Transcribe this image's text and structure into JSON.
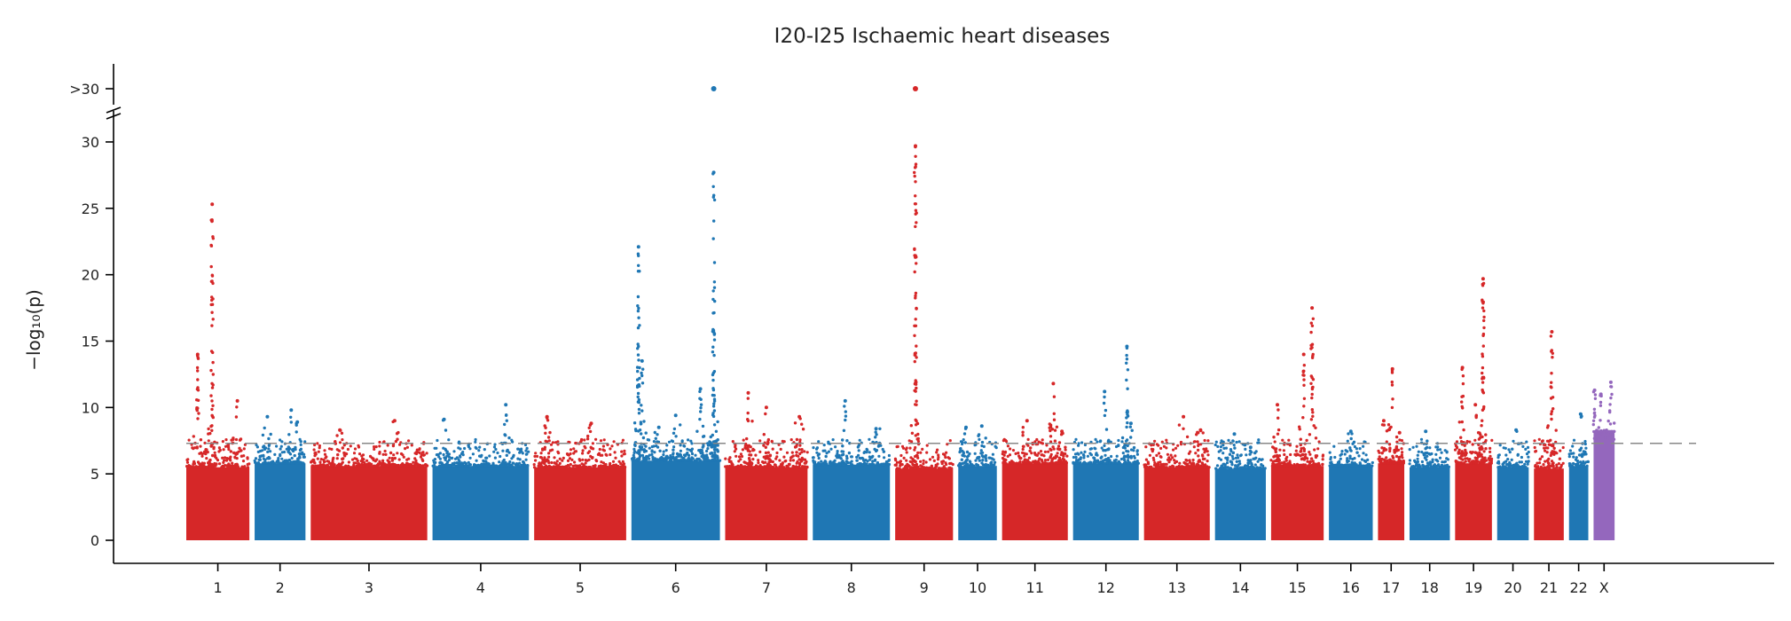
{
  "chart_data": {
    "type": "scatter",
    "subtype": "manhattan",
    "title": "I20-I25 Ischaemic heart diseases",
    "ylabel": "−log₁₀(p)",
    "ylim": [
      0,
      32
    ],
    "yticks": [
      0,
      5,
      10,
      15,
      20,
      25,
      30
    ],
    "y_break": true,
    "overflow_tick_label": ">30",
    "significance_threshold": 7.3,
    "threshold_style": "dashed",
    "colors": {
      "red": "#d62728",
      "blue": "#1f77b4",
      "purple": "#9467bd",
      "threshold": "#888888"
    },
    "chromosomes": [
      {
        "label": "1",
        "color": "#d62728",
        "baseline_max": 5.5,
        "peaks": [
          {
            "pos": 0.18,
            "max": 14.0
          },
          {
            "pos": 0.41,
            "max": 25.3
          },
          {
            "pos": 0.81,
            "max": 10.5
          }
        ]
      },
      {
        "label": "2",
        "color": "#1f77b4",
        "baseline_max": 5.8,
        "peaks": [
          {
            "pos": 0.25,
            "max": 9.3
          },
          {
            "pos": 0.72,
            "max": 9.8
          },
          {
            "pos": 0.84,
            "max": 8.9
          }
        ]
      },
      {
        "label": "3",
        "color": "#d62728",
        "baseline_max": 5.6,
        "peaks": [
          {
            "pos": 0.25,
            "max": 8.3
          },
          {
            "pos": 0.72,
            "max": 9.0
          }
        ]
      },
      {
        "label": "4",
        "color": "#1f77b4",
        "baseline_max": 5.6,
        "peaks": [
          {
            "pos": 0.12,
            "max": 9.1
          },
          {
            "pos": 0.76,
            "max": 10.2
          }
        ]
      },
      {
        "label": "5",
        "color": "#d62728",
        "baseline_max": 5.5,
        "peaks": [
          {
            "pos": 0.14,
            "max": 9.3
          },
          {
            "pos": 0.62,
            "max": 8.8
          }
        ]
      },
      {
        "label": "6",
        "color": "#1f77b4",
        "baseline_max": 6.0,
        "peaks": [
          {
            "pos": 0.08,
            "max": 22.1
          },
          {
            "pos": 0.12,
            "max": 13.5
          },
          {
            "pos": 0.31,
            "max": 8.5
          },
          {
            "pos": 0.5,
            "max": 9.4
          },
          {
            "pos": 0.78,
            "max": 11.4
          },
          {
            "pos": 0.93,
            "max": 27.7
          }
        ]
      },
      {
        "label": "7",
        "color": "#d62728",
        "baseline_max": 5.5,
        "peaks": [
          {
            "pos": 0.28,
            "max": 11.1
          },
          {
            "pos": 0.5,
            "max": 10.0
          },
          {
            "pos": 0.9,
            "max": 9.3
          }
        ]
      },
      {
        "label": "8",
        "color": "#1f77b4",
        "baseline_max": 5.7,
        "peaks": [
          {
            "pos": 0.42,
            "max": 10.5
          },
          {
            "pos": 0.82,
            "max": 8.4
          }
        ]
      },
      {
        "label": "9",
        "color": "#d62728",
        "baseline_max": 5.4,
        "peaks": [
          {
            "pos": 0.35,
            "max": 29.7
          }
        ]
      },
      {
        "label": "10",
        "color": "#1f77b4",
        "baseline_max": 5.6,
        "peaks": [
          {
            "pos": 0.2,
            "max": 8.5
          },
          {
            "pos": 0.61,
            "max": 8.6
          }
        ]
      },
      {
        "label": "11",
        "color": "#d62728",
        "baseline_max": 5.8,
        "peaks": [
          {
            "pos": 0.38,
            "max": 9.0
          },
          {
            "pos": 0.78,
            "max": 11.8
          },
          {
            "pos": 0.91,
            "max": 8.2
          }
        ]
      },
      {
        "label": "12",
        "color": "#1f77b4",
        "baseline_max": 5.8,
        "peaks": [
          {
            "pos": 0.48,
            "max": 11.2
          },
          {
            "pos": 0.82,
            "max": 14.6
          },
          {
            "pos": 0.88,
            "max": 8.8
          }
        ]
      },
      {
        "label": "13",
        "color": "#d62728",
        "baseline_max": 5.5,
        "peaks": [
          {
            "pos": 0.6,
            "max": 9.3
          },
          {
            "pos": 0.86,
            "max": 8.3
          }
        ]
      },
      {
        "label": "14",
        "color": "#1f77b4",
        "baseline_max": 5.4,
        "peaks": [
          {
            "pos": 0.38,
            "max": 8.0
          },
          {
            "pos": 0.7,
            "max": 7.0
          }
        ]
      },
      {
        "label": "15",
        "color": "#d62728",
        "baseline_max": 5.6,
        "peaks": [
          {
            "pos": 0.12,
            "max": 10.2
          },
          {
            "pos": 0.62,
            "max": 14.0
          },
          {
            "pos": 0.78,
            "max": 17.5
          }
        ]
      },
      {
        "label": "16",
        "color": "#1f77b4",
        "baseline_max": 5.6,
        "peaks": [
          {
            "pos": 0.5,
            "max": 8.2
          }
        ]
      },
      {
        "label": "17",
        "color": "#d62728",
        "baseline_max": 5.8,
        "peaks": [
          {
            "pos": 0.22,
            "max": 9.0
          },
          {
            "pos": 0.55,
            "max": 12.9
          },
          {
            "pos": 0.82,
            "max": 8.1
          }
        ]
      },
      {
        "label": "18",
        "color": "#1f77b4",
        "baseline_max": 5.5,
        "peaks": [
          {
            "pos": 0.4,
            "max": 8.2
          }
        ]
      },
      {
        "label": "19",
        "color": "#d62728",
        "baseline_max": 5.8,
        "peaks": [
          {
            "pos": 0.2,
            "max": 13.0
          },
          {
            "pos": 0.55,
            "max": 10.2
          },
          {
            "pos": 0.76,
            "max": 19.7
          }
        ]
      },
      {
        "label": "20",
        "color": "#1f77b4",
        "baseline_max": 5.5,
        "peaks": [
          {
            "pos": 0.6,
            "max": 8.3
          }
        ]
      },
      {
        "label": "21",
        "color": "#d62728",
        "baseline_max": 5.4,
        "peaks": [
          {
            "pos": 0.6,
            "max": 15.7
          }
        ]
      },
      {
        "label": "22",
        "color": "#1f77b4",
        "baseline_max": 5.6,
        "peaks": [
          {
            "pos": 0.6,
            "max": 9.5
          }
        ]
      },
      {
        "label": "X",
        "color": "#9467bd",
        "baseline_max": 8.2,
        "peaks": [
          {
            "pos": 0.05,
            "max": 11.3
          },
          {
            "pos": 0.35,
            "max": 11.0
          },
          {
            "pos": 0.82,
            "max": 11.9
          }
        ]
      }
    ],
    "overflow_points": [
      {
        "chrom": "6",
        "pos": 0.93,
        "color": "#1f77b4"
      },
      {
        "chrom": "9",
        "pos": 0.35,
        "color": "#d62728"
      }
    ]
  }
}
